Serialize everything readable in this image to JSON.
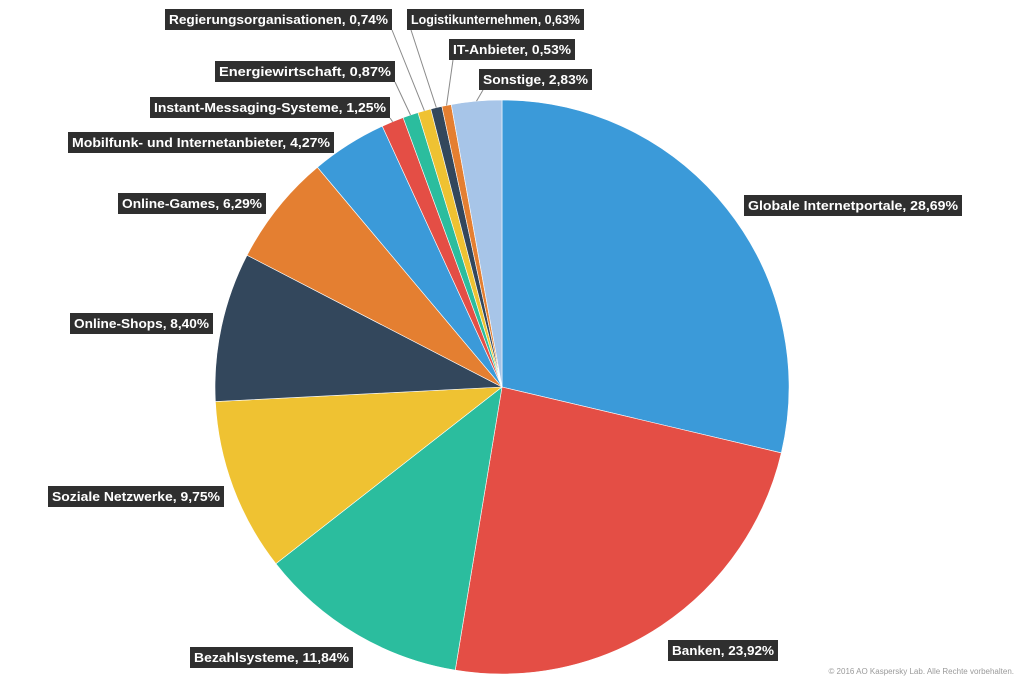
{
  "chart_data": {
    "type": "pie",
    "categories": [
      "Globale Internetportale",
      "Banken",
      "Bezahlsysteme",
      "Soziale Netzwerke",
      "Online-Shops",
      "Online-Games",
      "Mobilfunk- und Internetanbieter",
      "Instant-Messaging-Systeme",
      "Energiewirtschaft",
      "Regierungsorganisationen",
      "Logistikunternehmen",
      "IT-Anbieter",
      "Sonstige"
    ],
    "values": [
      28.69,
      23.92,
      11.84,
      9.75,
      8.4,
      6.29,
      4.27,
      1.25,
      0.87,
      0.74,
      0.63,
      0.53,
      2.83
    ],
    "labels": [
      "Globale Internetportale, 28,69%",
      "Banken, 23,92%",
      "Bezahlsysteme, 11,84%",
      "Soziale Netzwerke, 9,75%",
      "Online-Shops, 8,40%",
      "Online-Games, 6,29%",
      "Mobilfunk- und Internetanbieter, 4,27%",
      "Instant-Messaging-Systeme, 1,25%",
      "Energiewirtschaft, 0,87%",
      "Regierungsorganisationen, 0,74%",
      "Logistikunternehmen, 0,63%",
      "IT-Anbieter, 0,53%",
      "Sonstige, 2,83%"
    ],
    "colors": [
      "#3b9ad9",
      "#e44e45",
      "#2bbd9e",
      "#efc232",
      "#33475c",
      "#e47f31",
      "#3b9ad9",
      "#e44e45",
      "#2bbd9e",
      "#efc232",
      "#33475c",
      "#e47f31",
      "#a7c5e8"
    ],
    "start": "12 o'clock",
    "direction": "clockwise",
    "legend": "none"
  },
  "footer": {
    "copyright": "© 2016 AO Kaspersky Lab. Alle Rechte vorbehalten."
  }
}
